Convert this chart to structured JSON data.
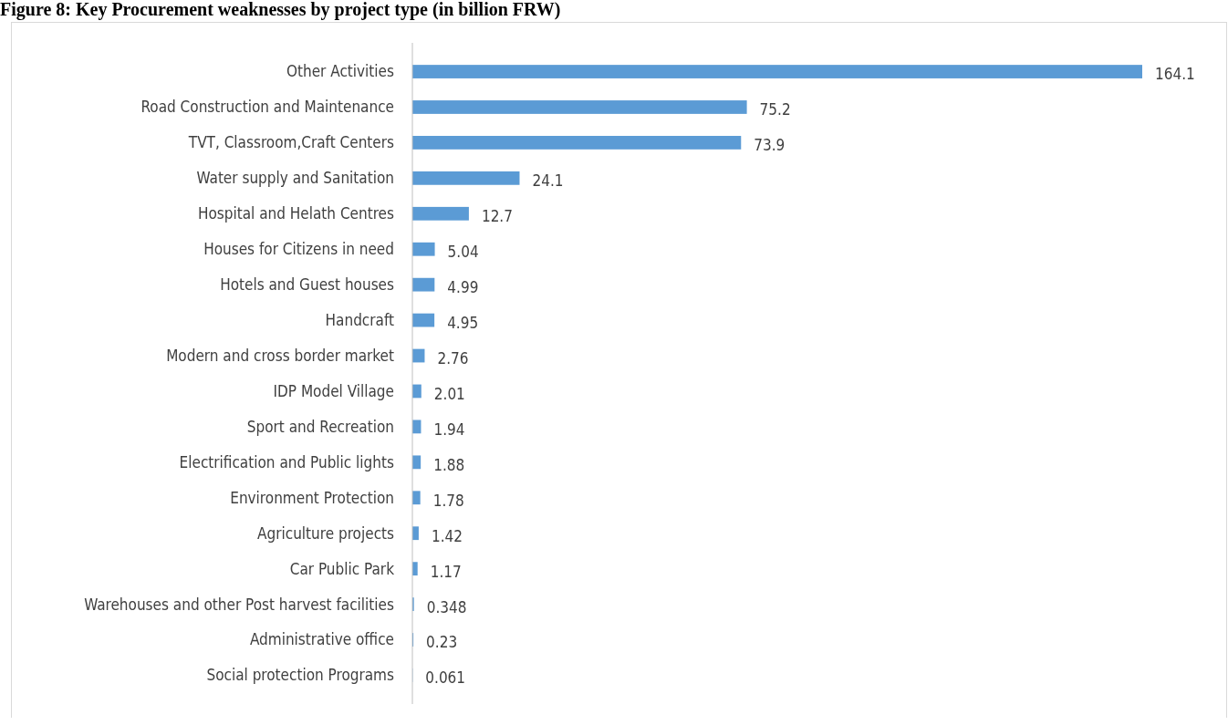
{
  "chart_data": {
    "type": "bar",
    "orientation": "horizontal",
    "title": "Figure 8: Key Procurement weaknesses by project type (in billion FRW)",
    "categories": [
      "Other Activities",
      "Road Construction and Maintenance",
      "TVT, Classroom,Craft Centers",
      "Water supply and Sanitation",
      "Hospital and Helath Centres",
      "Houses for Citizens in need",
      "Hotels and Guest houses",
      "Handcraft",
      "Modern and cross border market",
      "IDP Model Village",
      "Sport and Recreation",
      "Electrification and Public lights",
      "Environment Protection",
      "Agriculture projects",
      "Car Public Park",
      "Warehouses and other  Post harvest facilities",
      "Administrative office",
      "Social protection Programs"
    ],
    "values": [
      164.1,
      75.2,
      73.9,
      24.1,
      12.7,
      5.04,
      4.99,
      4.95,
      2.76,
      2.01,
      1.94,
      1.88,
      1.78,
      1.42,
      1.17,
      0.348,
      0.23,
      0.061
    ],
    "color": "#5b9bd5",
    "data_labels": true
  }
}
